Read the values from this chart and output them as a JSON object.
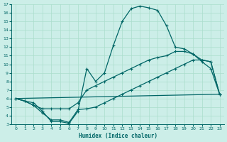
{
  "xlabel": "Humidex (Indice chaleur)",
  "bg_color": "#cceee8",
  "grid_color": "#aaddcc",
  "line_color": "#006666",
  "xlim": [
    -0.5,
    23.5
  ],
  "ylim": [
    3,
    17
  ],
  "xticks": [
    0,
    1,
    2,
    3,
    4,
    5,
    6,
    7,
    8,
    9,
    10,
    11,
    12,
    13,
    14,
    15,
    16,
    17,
    18,
    19,
    20,
    21,
    22,
    23
  ],
  "yticks": [
    3,
    4,
    5,
    6,
    7,
    8,
    9,
    10,
    11,
    12,
    13,
    14,
    15,
    16,
    17
  ],
  "curve1_x": [
    0,
    1,
    2,
    3,
    4,
    5,
    6,
    7,
    8,
    9,
    10,
    11,
    12,
    13,
    14,
    15,
    16,
    17,
    18,
    19,
    20,
    21,
    22,
    23
  ],
  "curve1_y": [
    6.0,
    5.7,
    5.5,
    4.5,
    3.3,
    3.3,
    3.1,
    4.5,
    9.5,
    8.0,
    9.0,
    12.2,
    15.0,
    16.5,
    16.8,
    16.6,
    16.3,
    14.5,
    12.0,
    11.8,
    11.2,
    10.3,
    9.5,
    6.5
  ],
  "curve2_x": [
    0,
    1,
    2,
    3,
    4,
    5,
    6,
    7,
    8,
    9,
    10,
    11,
    12,
    13,
    14,
    15,
    16,
    17,
    18,
    19,
    20,
    21,
    22,
    23
  ],
  "curve2_y": [
    6.0,
    5.7,
    5.2,
    4.8,
    4.8,
    4.8,
    4.8,
    5.5,
    7.0,
    7.5,
    8.0,
    8.5,
    9.0,
    9.5,
    10.0,
    10.5,
    10.8,
    11.0,
    11.5,
    11.5,
    11.2,
    10.5,
    10.3,
    6.5
  ],
  "curve3_x": [
    0,
    23
  ],
  "curve3_y": [
    6.0,
    6.5
  ],
  "curve4_x": [
    0,
    1,
    2,
    3,
    4,
    5,
    6,
    7,
    8,
    9,
    10,
    11,
    12,
    13,
    14,
    15,
    16,
    17,
    18,
    19,
    20,
    21,
    22,
    23
  ],
  "curve4_y": [
    6.0,
    5.7,
    5.2,
    4.3,
    3.5,
    3.5,
    3.2,
    4.7,
    4.8,
    5.0,
    5.5,
    6.0,
    6.5,
    7.0,
    7.5,
    8.0,
    8.5,
    9.0,
    9.5,
    10.0,
    10.5,
    10.5,
    10.3,
    6.5
  ]
}
